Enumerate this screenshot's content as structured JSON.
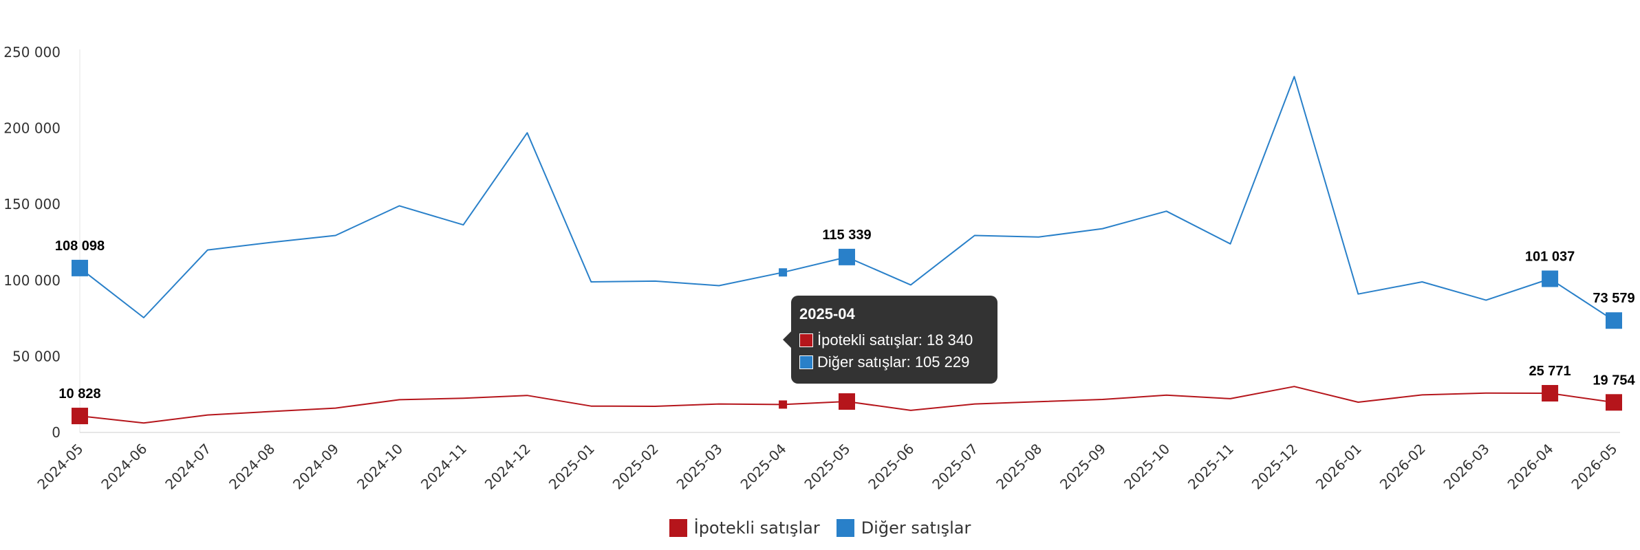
{
  "chart_data": {
    "type": "line",
    "categories": [
      "2024-05",
      "2024-06",
      "2024-07",
      "2024-08",
      "2024-09",
      "2024-10",
      "2024-11",
      "2024-12",
      "2025-01",
      "2025-02",
      "2025-03",
      "2025-04",
      "2025-05",
      "2025-06",
      "2025-07",
      "2025-08",
      "2025-09",
      "2025-10",
      "2025-11",
      "2025-12",
      "2026-01",
      "2026-02",
      "2026-03",
      "2026-04",
      "2026-05"
    ],
    "ylim": [
      0,
      250000
    ],
    "yticks": [
      0,
      50000,
      100000,
      150000,
      200000,
      250000
    ],
    "ytick_labels": [
      "0",
      "50 000",
      "100 000",
      "150 000",
      "200 000",
      "250 000"
    ],
    "grid": false,
    "legend_position": "bottom-center",
    "series": [
      {
        "name": "İpotekli satışlar",
        "color": "#b5151b",
        "values": [
          10828,
          6200,
          11500,
          13800,
          16000,
          21500,
          22500,
          24300,
          17300,
          17200,
          18700,
          18340,
          20325,
          14500,
          18700,
          20200,
          21700,
          24500,
          22200,
          30200,
          19900,
          24700,
          25900,
          25771,
          19754
        ],
        "labeled": [
          {
            "index": 0,
            "label": "10 828"
          },
          {
            "index": 12,
            "label": "20 325"
          },
          {
            "index": 23,
            "label": "25 771"
          },
          {
            "index": 24,
            "label": "19 754"
          }
        ]
      },
      {
        "name": "Diğer satışlar",
        "color": "#2980c9",
        "values": [
          108098,
          75500,
          120000,
          125000,
          129500,
          149000,
          136500,
          197000,
          99000,
          99500,
          96500,
          105229,
          115339,
          97000,
          129500,
          128500,
          134000,
          145500,
          124000,
          234000,
          91000,
          99000,
          87000,
          101037,
          73579
        ],
        "labeled": [
          {
            "index": 0,
            "label": "108 098"
          },
          {
            "index": 12,
            "label": "115 339"
          },
          {
            "index": 23,
            "label": "101 037"
          },
          {
            "index": 24,
            "label": "73 579"
          }
        ]
      }
    ],
    "hover_index": 11
  },
  "tooltip": {
    "title": "2025-04",
    "row1": "İpotekli satışlar: 18 340",
    "row2": "Diğer satışlar: 105 229"
  },
  "legend": {
    "item1": "İpotekli satışlar",
    "item2": "Diğer satışlar"
  }
}
